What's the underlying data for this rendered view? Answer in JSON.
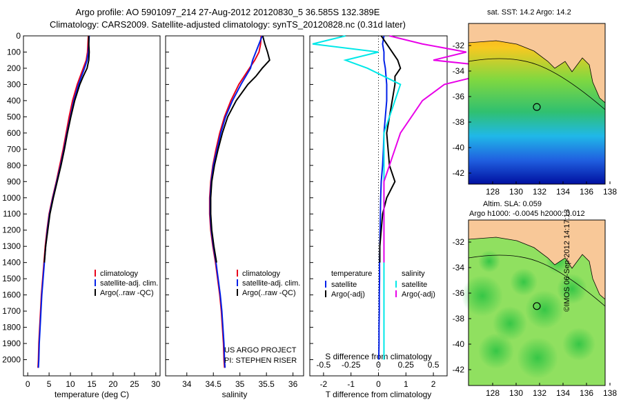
{
  "header": {
    "title_line1": "Argo profile: AO 5901097_214 27-Aug-2012 20120830_5 36.585S 132.389E",
    "title_line2": "Climatology: CARS2009. Satellite-adjusted climatology: synTS_20120828.nc (0.31d later)"
  },
  "colors": {
    "climatology": "#e8001a",
    "satellite": "#0020e8",
    "argo": "#000000",
    "salinity_sat": "#00e8e8",
    "salinity_argo": "#e800e8",
    "land": "#f8c898"
  },
  "notes": {
    "project": "US ARGO PROJECT",
    "pi": "PI: STEPHEN RISER"
  },
  "maps": {
    "sst_title": "sat. SST: 14.2 Argo: 14.2",
    "sla_title1": "Altim. SLA: 0.059",
    "sla_title2": "Argo h1000: -0.0045 h2000: 0.012",
    "credit": "©IMOS 06-Sep-2012 14:17:13",
    "lat_ticks": [
      "-32",
      "-34",
      "-36",
      "-38",
      "-40",
      "-42"
    ],
    "lon_ticks": [
      "128",
      "130",
      "132",
      "134",
      "136",
      "138"
    ]
  },
  "chart_data": [
    {
      "type": "line",
      "xlabel": "temperature (deg C)",
      "ylabel": "",
      "xlim": [
        -1,
        31
      ],
      "ylim": [
        2100,
        0
      ],
      "xticks": [
        "0",
        "5",
        "10",
        "15",
        "20",
        "25",
        "30"
      ],
      "yticks": [
        "0",
        "100",
        "200",
        "300",
        "400",
        "500",
        "600",
        "700",
        "800",
        "900",
        "1000",
        "1100",
        "1200",
        "1300",
        "1400",
        "1500",
        "1600",
        "1700",
        "1800",
        "1900",
        "2000"
      ],
      "legend_position": "lower-right",
      "series": [
        {
          "name": "climatology",
          "depth": [
            0,
            50,
            100,
            150,
            200,
            300,
            400,
            500,
            600,
            700,
            800,
            900,
            1000,
            1100,
            1200,
            1300,
            1400,
            1500,
            1600,
            1700,
            1800,
            1900,
            2000,
            2050
          ],
          "values": [
            14.2,
            14.1,
            14.0,
            13.7,
            13.0,
            11.6,
            10.5,
            9.7,
            9.0,
            8.3,
            7.5,
            6.7,
            5.8,
            5.0,
            4.5,
            4.1,
            3.8,
            3.5,
            3.2,
            3.0,
            2.8,
            2.6,
            2.5,
            2.4
          ]
        },
        {
          "name": "satellite-adj. clim.",
          "depth": [
            0,
            50,
            100,
            150,
            200,
            300,
            400,
            500,
            600,
            700,
            800,
            900,
            1000,
            1100,
            1200,
            1300,
            1400,
            1500,
            1600,
            1700,
            1800,
            1900,
            2000,
            2050
          ],
          "values": [
            14.4,
            14.3,
            14.2,
            13.9,
            13.3,
            11.9,
            10.8,
            10.0,
            9.2,
            8.5,
            7.7,
            6.8,
            5.9,
            5.1,
            4.6,
            4.2,
            3.9,
            3.6,
            3.3,
            3.1,
            2.9,
            2.7,
            2.6,
            2.5
          ]
        },
        {
          "name": "Argo(..raw -QC)",
          "depth": [
            0,
            50,
            100,
            150,
            200,
            250,
            300,
            400,
            500,
            600,
            700,
            800,
            900,
            1000,
            1100,
            1200,
            1300,
            1400
          ],
          "values": [
            14.3,
            14.3,
            14.4,
            14.3,
            13.9,
            13.0,
            12.2,
            11.0,
            10.1,
            9.3,
            8.6,
            7.8,
            6.9,
            6.0,
            5.2,
            4.7,
            4.2,
            3.9
          ]
        }
      ]
    },
    {
      "type": "line",
      "xlabel": "salinity",
      "ylabel": "",
      "xlim": [
        33.6,
        36.2
      ],
      "ylim": [
        2100,
        0
      ],
      "xticks": [
        "34",
        "34.5",
        "35",
        "35.5",
        "36"
      ],
      "legend_position": "lower-right",
      "series": [
        {
          "name": "climatology",
          "depth": [
            0,
            50,
            100,
            150,
            200,
            300,
            400,
            500,
            600,
            700,
            800,
            900,
            1000,
            1100,
            1200,
            1300,
            1400,
            1500,
            1600,
            1700,
            1800,
            1900,
            2000,
            2050
          ],
          "values": [
            35.4,
            35.39,
            35.36,
            35.28,
            35.18,
            34.98,
            34.83,
            34.71,
            34.62,
            34.55,
            34.49,
            34.45,
            34.43,
            34.43,
            34.45,
            34.49,
            34.54,
            34.58,
            34.62,
            34.65,
            34.67,
            34.69,
            34.7,
            34.71
          ]
        },
        {
          "name": "satellite-adj. clim.",
          "depth": [
            0,
            50,
            100,
            150,
            200,
            300,
            400,
            500,
            600,
            700,
            800,
            900,
            1000,
            1100,
            1200,
            1300,
            1400,
            1500,
            1600,
            1700,
            1800,
            1900,
            2000,
            2050
          ],
          "values": [
            35.42,
            35.36,
            35.3,
            35.24,
            35.2,
            35.02,
            34.86,
            34.73,
            34.64,
            34.57,
            34.5,
            34.46,
            34.44,
            34.44,
            34.46,
            34.5,
            34.55,
            34.59,
            34.63,
            34.66,
            34.68,
            34.7,
            34.71,
            34.72
          ]
        },
        {
          "name": "Argo(..raw -QC)",
          "depth": [
            0,
            50,
            100,
            150,
            200,
            250,
            300,
            400,
            500,
            600,
            700,
            800,
            900,
            1000,
            1100,
            1200,
            1300,
            1400
          ],
          "values": [
            35.43,
            35.47,
            35.52,
            35.56,
            35.42,
            35.3,
            35.15,
            34.93,
            34.77,
            34.67,
            34.59,
            34.52,
            34.47,
            34.45,
            34.45,
            34.47,
            34.51,
            34.56
          ]
        }
      ]
    },
    {
      "type": "line",
      "xlabel": "T difference from climatology",
      "top_label": "S difference from climatology",
      "xlim": [
        -2.5,
        2.5
      ],
      "ylim": [
        2100,
        0
      ],
      "xticks": [
        "-2",
        "-1",
        "0",
        "1",
        "2"
      ],
      "top_ticks": [
        "-0.5",
        "-0.25",
        "0",
        "0.25",
        "0.5"
      ],
      "legend_groups": [
        "temperature",
        "salinity"
      ],
      "legend_position": "lower-right",
      "series": [
        {
          "name": "satellite",
          "group": "temperature",
          "depth": [
            0,
            50,
            100,
            150,
            200,
            300,
            400,
            500,
            600,
            700,
            800,
            900,
            1000,
            1100,
            1200,
            1300,
            1400,
            1500,
            1600,
            1700,
            1800,
            1900,
            2000
          ],
          "values": [
            0.2,
            0.15,
            0.2,
            0.2,
            0.25,
            0.3,
            0.3,
            0.25,
            0.2,
            0.18,
            0.15,
            0.1,
            0.08,
            0.07,
            0.06,
            0.05,
            0.04,
            0.04,
            0.03,
            0.03,
            0.02,
            0.02,
            0.01
          ]
        },
        {
          "name": "Argo(-adj)",
          "group": "temperature",
          "depth": [
            0,
            50,
            100,
            150,
            200,
            250,
            300,
            400,
            500,
            600,
            700,
            800,
            900,
            1000,
            1100,
            1200,
            1300,
            1400
          ],
          "values": [
            0.1,
            0.3,
            0.5,
            0.7,
            0.8,
            0.6,
            0.6,
            0.5,
            0.4,
            0.3,
            0.35,
            0.4,
            0.6,
            0.3,
            0.15,
            0.1,
            0.05,
            0.05
          ]
        },
        {
          "name": "satellite",
          "group": "salinity",
          "depth": [
            0,
            50,
            100,
            150,
            200,
            300,
            400,
            500,
            600,
            700,
            800,
            900,
            1000,
            1100,
            1200,
            1300,
            1400,
            1500,
            1600,
            1700,
            1800,
            1900,
            2000
          ],
          "values": [
            -0.3,
            -0.6,
            0,
            -0.3,
            -0.1,
            0.2,
            0.15,
            0.1,
            0.05,
            0.05,
            0.05,
            0.05,
            0.05,
            0.05,
            0.05,
            0.05,
            0.05,
            0.05,
            0.05,
            0.05,
            0.05,
            0.05,
            0.05
          ]
        },
        {
          "name": "Argo(-adj)",
          "group": "salinity",
          "depth": [
            0,
            50,
            100,
            150,
            200,
            300,
            400,
            500,
            600,
            700,
            800,
            900,
            1000,
            1100,
            1200,
            1300,
            1400
          ],
          "values": [
            0.1,
            0.4,
            0.8,
            0.5,
            1.2,
            0.6,
            0.4,
            0.3,
            0.2,
            0.15,
            0.1,
            0.05,
            0.05,
            0.05,
            0.05,
            0.05,
            0.05
          ]
        }
      ]
    }
  ]
}
